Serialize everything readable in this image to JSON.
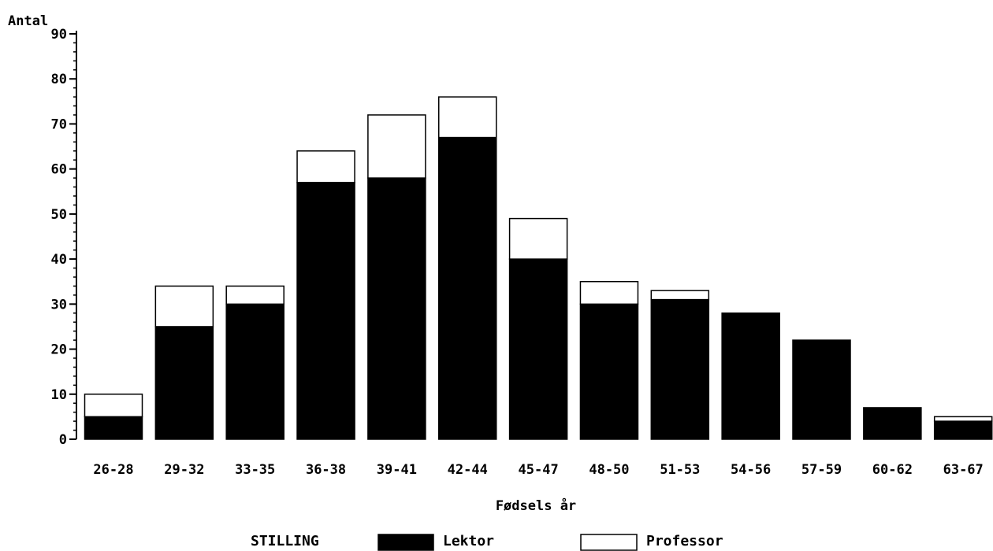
{
  "chart_data": {
    "type": "bar",
    "stacked": true,
    "categories": [
      "26-28",
      "29-32",
      "33-35",
      "36-38",
      "39-41",
      "42-44",
      "45-47",
      "48-50",
      "51-53",
      "54-56",
      "57-59",
      "60-62",
      "63-67"
    ],
    "series": [
      {
        "name": "Lektor",
        "values": [
          5,
          25,
          30,
          57,
          58,
          67,
          40,
          30,
          31,
          28,
          22,
          7,
          4
        ],
        "color": "#000000"
      },
      {
        "name": "Professor",
        "values": [
          5,
          9,
          4,
          7,
          14,
          9,
          9,
          5,
          2,
          0,
          0,
          0,
          1
        ],
        "color": "#ffffff"
      }
    ],
    "ylabel": "Antal",
    "xlabel": "Fødsels år",
    "ylim": [
      0,
      90
    ],
    "yticks": [
      0,
      10,
      20,
      30,
      40,
      50,
      60,
      70,
      80,
      90
    ],
    "legend_title": "STILLING",
    "legend_position": "bottom",
    "grid": false
  }
}
